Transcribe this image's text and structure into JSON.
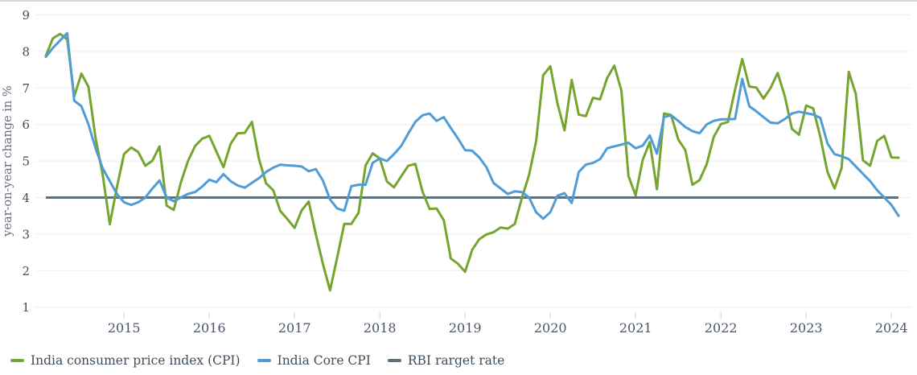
{
  "page": {
    "background": "#ffffff",
    "top_border_color": "#d6d6d6"
  },
  "chart_data": {
    "type": "line",
    "title": "",
    "xlabel": "",
    "ylabel": "year-on-year change in %",
    "ylim": [
      1,
      9
    ],
    "yticks": [
      9,
      8,
      7,
      6,
      5,
      4,
      3,
      2,
      1
    ],
    "grid": true,
    "legend_position": "bottom-left",
    "x_range": {
      "start": "2014-02",
      "end": "2024-02",
      "frequency": "monthly"
    },
    "xticks": [
      {
        "label": "2015",
        "month_index": 11
      },
      {
        "label": "2016",
        "month_index": 23
      },
      {
        "label": "2017",
        "month_index": 35
      },
      {
        "label": "2018",
        "month_index": 47
      },
      {
        "label": "2019",
        "month_index": 59
      },
      {
        "label": "2020",
        "month_index": 71
      },
      {
        "label": "2021",
        "month_index": 83
      },
      {
        "label": "2022",
        "month_index": 95
      },
      {
        "label": "2023",
        "month_index": 107
      },
      {
        "label": "2024",
        "month_index": 119
      }
    ],
    "axis_style": {
      "gridline_color": "#ededed",
      "tick_mark_color": "#cfcfcf",
      "y_tick_label_color": "#4f4b47",
      "x_tick_label_color": "#4b5566",
      "ylabel_color": "#6f6b87"
    },
    "series": [
      {
        "name": "India consumer price index (CPI)",
        "color": "#76A52F",
        "values": [
          7.88,
          8.36,
          8.48,
          8.33,
          6.77,
          7.39,
          7.03,
          5.63,
          4.62,
          3.27,
          4.28,
          5.19,
          5.37,
          5.25,
          4.87,
          5.01,
          5.4,
          3.78,
          3.66,
          4.41,
          5.0,
          5.41,
          5.61,
          5.69,
          5.26,
          4.83,
          5.47,
          5.76,
          5.77,
          6.07,
          5.05,
          4.39,
          4.2,
          3.63,
          3.41,
          3.17,
          3.65,
          3.89,
          2.99,
          2.18,
          1.46,
          2.36,
          3.28,
          3.28,
          3.58,
          4.88,
          5.21,
          5.07,
          4.44,
          4.28,
          4.58,
          4.87,
          4.92,
          4.17,
          3.69,
          3.7,
          3.38,
          2.33,
          2.19,
          1.97,
          2.57,
          2.86,
          2.99,
          3.05,
          3.18,
          3.15,
          3.28,
          3.99,
          4.62,
          5.54,
          7.35,
          7.59,
          6.58,
          5.84,
          7.22,
          6.27,
          6.23,
          6.73,
          6.69,
          7.27,
          7.61,
          6.93,
          4.59,
          4.06,
          5.03,
          5.52,
          4.23,
          6.3,
          6.26,
          5.59,
          5.3,
          4.35,
          4.48,
          4.91,
          5.66,
          6.01,
          6.07,
          6.95,
          7.79,
          7.04,
          7.01,
          6.71,
          7.0,
          7.41,
          6.77,
          5.88,
          5.72,
          6.52,
          6.44,
          5.66,
          4.7,
          4.25,
          4.81,
          7.44,
          6.83,
          5.02,
          4.87,
          5.55,
          5.69,
          5.1,
          5.09
        ]
      },
      {
        "name": "India Core CPI",
        "color": "#509CD6",
        "values": [
          7.85,
          8.1,
          8.3,
          8.5,
          6.65,
          6.5,
          6.0,
          5.35,
          4.8,
          4.45,
          4.1,
          3.87,
          3.8,
          3.87,
          4.0,
          4.25,
          4.47,
          4.0,
          3.9,
          4.0,
          4.1,
          4.15,
          4.3,
          4.49,
          4.42,
          4.64,
          4.45,
          4.33,
          4.27,
          4.4,
          4.53,
          4.7,
          4.82,
          4.9,
          4.88,
          4.87,
          4.85,
          4.72,
          4.78,
          4.46,
          3.95,
          3.7,
          3.64,
          4.31,
          4.35,
          4.35,
          4.95,
          5.07,
          5.0,
          5.19,
          5.41,
          5.75,
          6.07,
          6.25,
          6.3,
          6.1,
          6.2,
          5.9,
          5.62,
          5.3,
          5.28,
          5.1,
          4.83,
          4.4,
          4.25,
          4.1,
          4.17,
          4.15,
          4.0,
          3.6,
          3.42,
          3.6,
          4.05,
          4.12,
          3.85,
          4.7,
          4.9,
          4.95,
          5.05,
          5.35,
          5.4,
          5.45,
          5.5,
          5.35,
          5.42,
          5.7,
          5.2,
          6.2,
          6.25,
          6.1,
          5.93,
          5.82,
          5.76,
          6.0,
          6.1,
          6.14,
          6.14,
          6.15,
          7.25,
          6.5,
          6.36,
          6.2,
          6.05,
          6.03,
          6.15,
          6.3,
          6.35,
          6.31,
          6.27,
          6.18,
          5.48,
          5.19,
          5.13,
          5.05,
          4.85,
          4.65,
          4.45,
          4.2,
          4.0,
          3.8,
          3.5
        ]
      },
      {
        "name": "RBI rarget rate",
        "color": "#5C707E",
        "type": "constant",
        "value": 4.0
      }
    ]
  }
}
